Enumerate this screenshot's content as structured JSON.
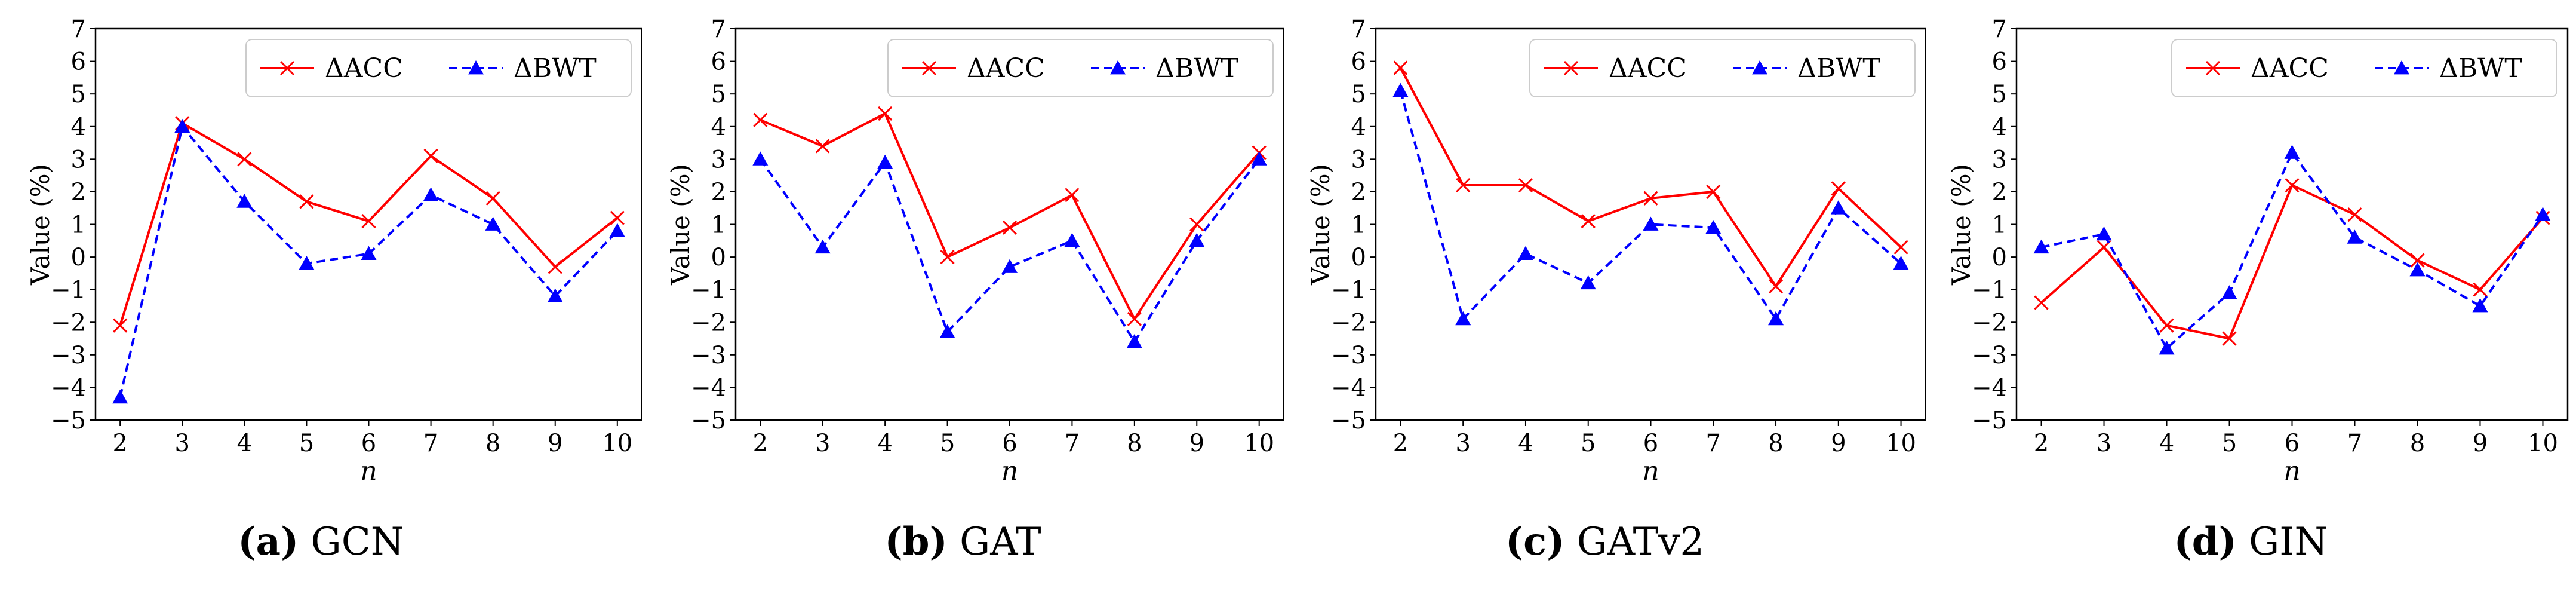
{
  "chart_data": [
    {
      "type": "line",
      "caption_letter": "(a)",
      "caption_name": "GCN",
      "xlabel": "n",
      "ylabel": "Value (%)",
      "x": [
        2,
        3,
        4,
        5,
        6,
        7,
        8,
        9,
        10
      ],
      "ylim": [
        -5,
        7
      ],
      "yticks": [
        -5,
        -4,
        -3,
        -2,
        -1,
        0,
        1,
        2,
        3,
        4,
        5,
        6,
        7
      ],
      "legend": "top-right",
      "series": [
        {
          "name": "ΔACC",
          "color": "#ff0000",
          "marker": "x",
          "linestyle": "solid",
          "values": [
            -2.1,
            4.1,
            3.0,
            1.7,
            1.1,
            3.1,
            1.8,
            -0.3,
            1.2
          ]
        },
        {
          "name": "ΔBWT",
          "color": "#0000ff",
          "marker": "triangle",
          "linestyle": "dashed",
          "values": [
            -4.3,
            4.0,
            1.7,
            -0.2,
            0.1,
            1.9,
            1.0,
            -1.2,
            0.8
          ]
        }
      ]
    },
    {
      "type": "line",
      "caption_letter": "(b)",
      "caption_name": "GAT",
      "xlabel": "n",
      "ylabel": "Value (%)",
      "x": [
        2,
        3,
        4,
        5,
        6,
        7,
        8,
        9,
        10
      ],
      "ylim": [
        -5,
        7
      ],
      "yticks": [
        -5,
        -4,
        -3,
        -2,
        -1,
        0,
        1,
        2,
        3,
        4,
        5,
        6,
        7
      ],
      "legend": "top-right",
      "series": [
        {
          "name": "ΔACC",
          "color": "#ff0000",
          "marker": "x",
          "linestyle": "solid",
          "values": [
            4.2,
            3.4,
            4.4,
            0.0,
            0.9,
            1.9,
            -1.9,
            1.0,
            3.2
          ]
        },
        {
          "name": "ΔBWT",
          "color": "#0000ff",
          "marker": "triangle",
          "linestyle": "dashed",
          "values": [
            3.0,
            0.3,
            2.9,
            -2.3,
            -0.3,
            0.5,
            -2.6,
            0.5,
            3.0
          ]
        }
      ]
    },
    {
      "type": "line",
      "caption_letter": "(c)",
      "caption_name": "GATv2",
      "xlabel": "n",
      "ylabel": "Value (%)",
      "x": [
        2,
        3,
        4,
        5,
        6,
        7,
        8,
        9,
        10
      ],
      "ylim": [
        -5,
        7
      ],
      "yticks": [
        -5,
        -4,
        -3,
        -2,
        -1,
        0,
        1,
        2,
        3,
        4,
        5,
        6,
        7
      ],
      "legend": "top-right",
      "series": [
        {
          "name": "ΔACC",
          "color": "#ff0000",
          "marker": "x",
          "linestyle": "solid",
          "values": [
            5.8,
            2.2,
            2.2,
            1.1,
            1.8,
            2.0,
            -0.9,
            2.1,
            0.3
          ]
        },
        {
          "name": "ΔBWT",
          "color": "#0000ff",
          "marker": "triangle",
          "linestyle": "dashed",
          "values": [
            5.1,
            -1.9,
            0.1,
            -0.8,
            1.0,
            0.9,
            -1.9,
            1.5,
            -0.2
          ]
        }
      ]
    },
    {
      "type": "line",
      "caption_letter": "(d)",
      "caption_name": "GIN",
      "xlabel": "n",
      "ylabel": "Value (%)",
      "x": [
        2,
        3,
        4,
        5,
        6,
        7,
        8,
        9,
        10
      ],
      "ylim": [
        -5,
        7
      ],
      "yticks": [
        -5,
        -4,
        -3,
        -2,
        -1,
        0,
        1,
        2,
        3,
        4,
        5,
        6,
        7
      ],
      "legend": "top-right",
      "series": [
        {
          "name": "ΔACC",
          "color": "#ff0000",
          "marker": "x",
          "linestyle": "solid",
          "values": [
            -1.4,
            0.3,
            -2.1,
            -2.5,
            2.2,
            1.3,
            -0.1,
            -1.0,
            1.2
          ]
        },
        {
          "name": "ΔBWT",
          "color": "#0000ff",
          "marker": "triangle",
          "linestyle": "dashed",
          "values": [
            0.3,
            0.7,
            -2.8,
            -1.1,
            3.2,
            0.6,
            -0.4,
            -1.5,
            1.3
          ]
        }
      ]
    }
  ]
}
